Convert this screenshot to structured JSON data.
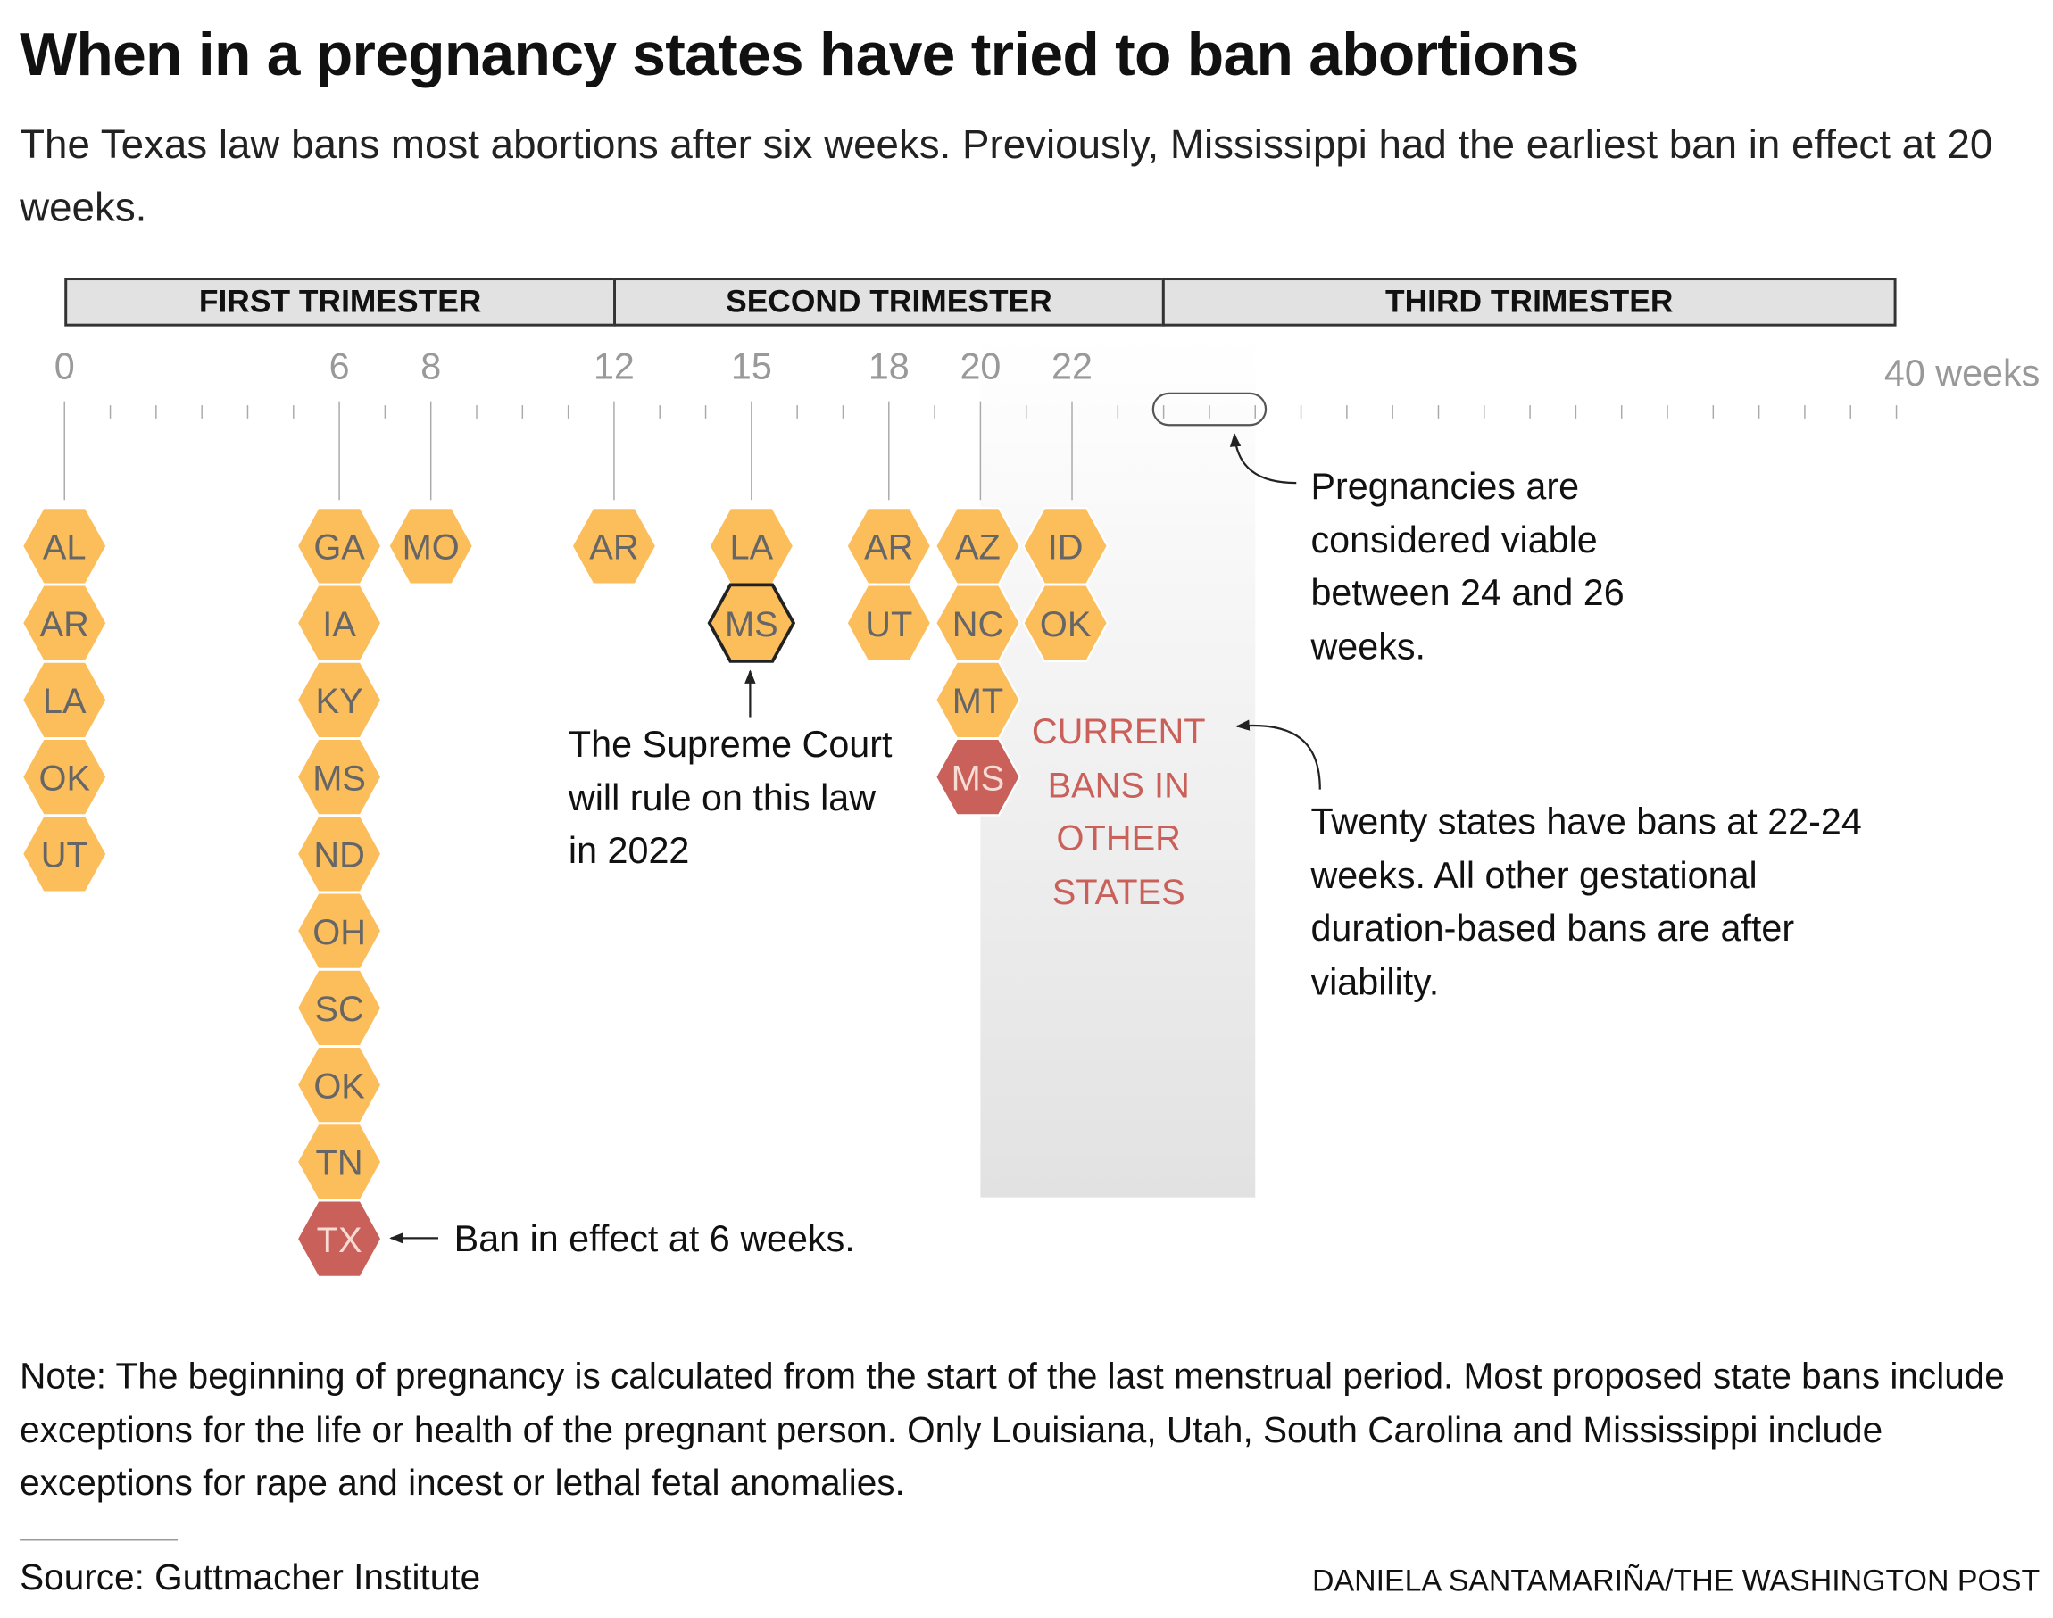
{
  "title": "When in a pregnancy states have tried to ban abortions",
  "subtitle": "The Texas law bans most abortions after six weeks. Previously, Mississippi had the earliest ban in effect at 20 weeks.",
  "trimesters": [
    "FIRST TRIMESTER",
    "SECOND TRIMESTER",
    "THIRD TRIMESTER"
  ],
  "colors": {
    "proposed": "#fcbd5b",
    "in_effect": "#c9605a",
    "label_text": "#666666",
    "in_effect_text": "#f6dcd4",
    "axis": "#999999"
  },
  "chart_data": {
    "type": "dot-column",
    "x_axis": {
      "range": [
        0,
        40
      ],
      "unit": "weeks",
      "tick_labels": [
        "0",
        "6",
        "8",
        "12",
        "15",
        "18",
        "20",
        "22",
        "40 weeks"
      ],
      "labeled_weeks": [
        0,
        6,
        8,
        12,
        15,
        18,
        20,
        22
      ]
    },
    "viability_range": [
      24,
      26
    ],
    "current_bans_shading": [
      20,
      26
    ],
    "columns": [
      {
        "week": 0,
        "states": [
          "AL",
          "AR",
          "LA",
          "OK",
          "UT"
        ]
      },
      {
        "week": 6,
        "states": [
          "GA",
          "IA",
          "KY",
          "MS",
          "ND",
          "OH",
          "SC",
          "OK",
          "TN",
          "TX"
        ],
        "in_effect": [
          "TX"
        ]
      },
      {
        "week": 8,
        "states": [
          "MO"
        ]
      },
      {
        "week": 12,
        "states": [
          "AR"
        ]
      },
      {
        "week": 15,
        "states": [
          "LA",
          "MS"
        ],
        "highlighted": [
          "MS"
        ]
      },
      {
        "week": 18,
        "states": [
          "AR",
          "UT"
        ]
      },
      {
        "week": 20,
        "states": [
          "AZ",
          "NC",
          "MT",
          "MS"
        ],
        "in_effect": [
          "MS"
        ]
      },
      {
        "week": 22,
        "states": [
          "ID",
          "OK"
        ]
      }
    ]
  },
  "annotations": {
    "viability": "Pregnancies are considered viable between 24 and 26 weeks.",
    "supreme_court": "The Supreme Court will rule on this law in 2022",
    "texas": "Ban in effect at 6 weeks.",
    "current_bans": "CURRENT BANS IN OTHER STATES",
    "twenty_states": "Twenty states have bans at 22-24 weeks. All other gestational duration-based bans are after viability."
  },
  "note": "Note: The beginning of pregnancy is calculated from the start of the last menstrual period. Most proposed state bans include exceptions for the life or health of the pregnant person. Only Louisiana, Utah, South Carolina and Mississippi include exceptions for rape and incest or lethal fetal anomalies.",
  "source": "Source: Guttmacher Institute",
  "credit": "DANIELA SANTAMARIÑA/THE WASHINGTON POST"
}
